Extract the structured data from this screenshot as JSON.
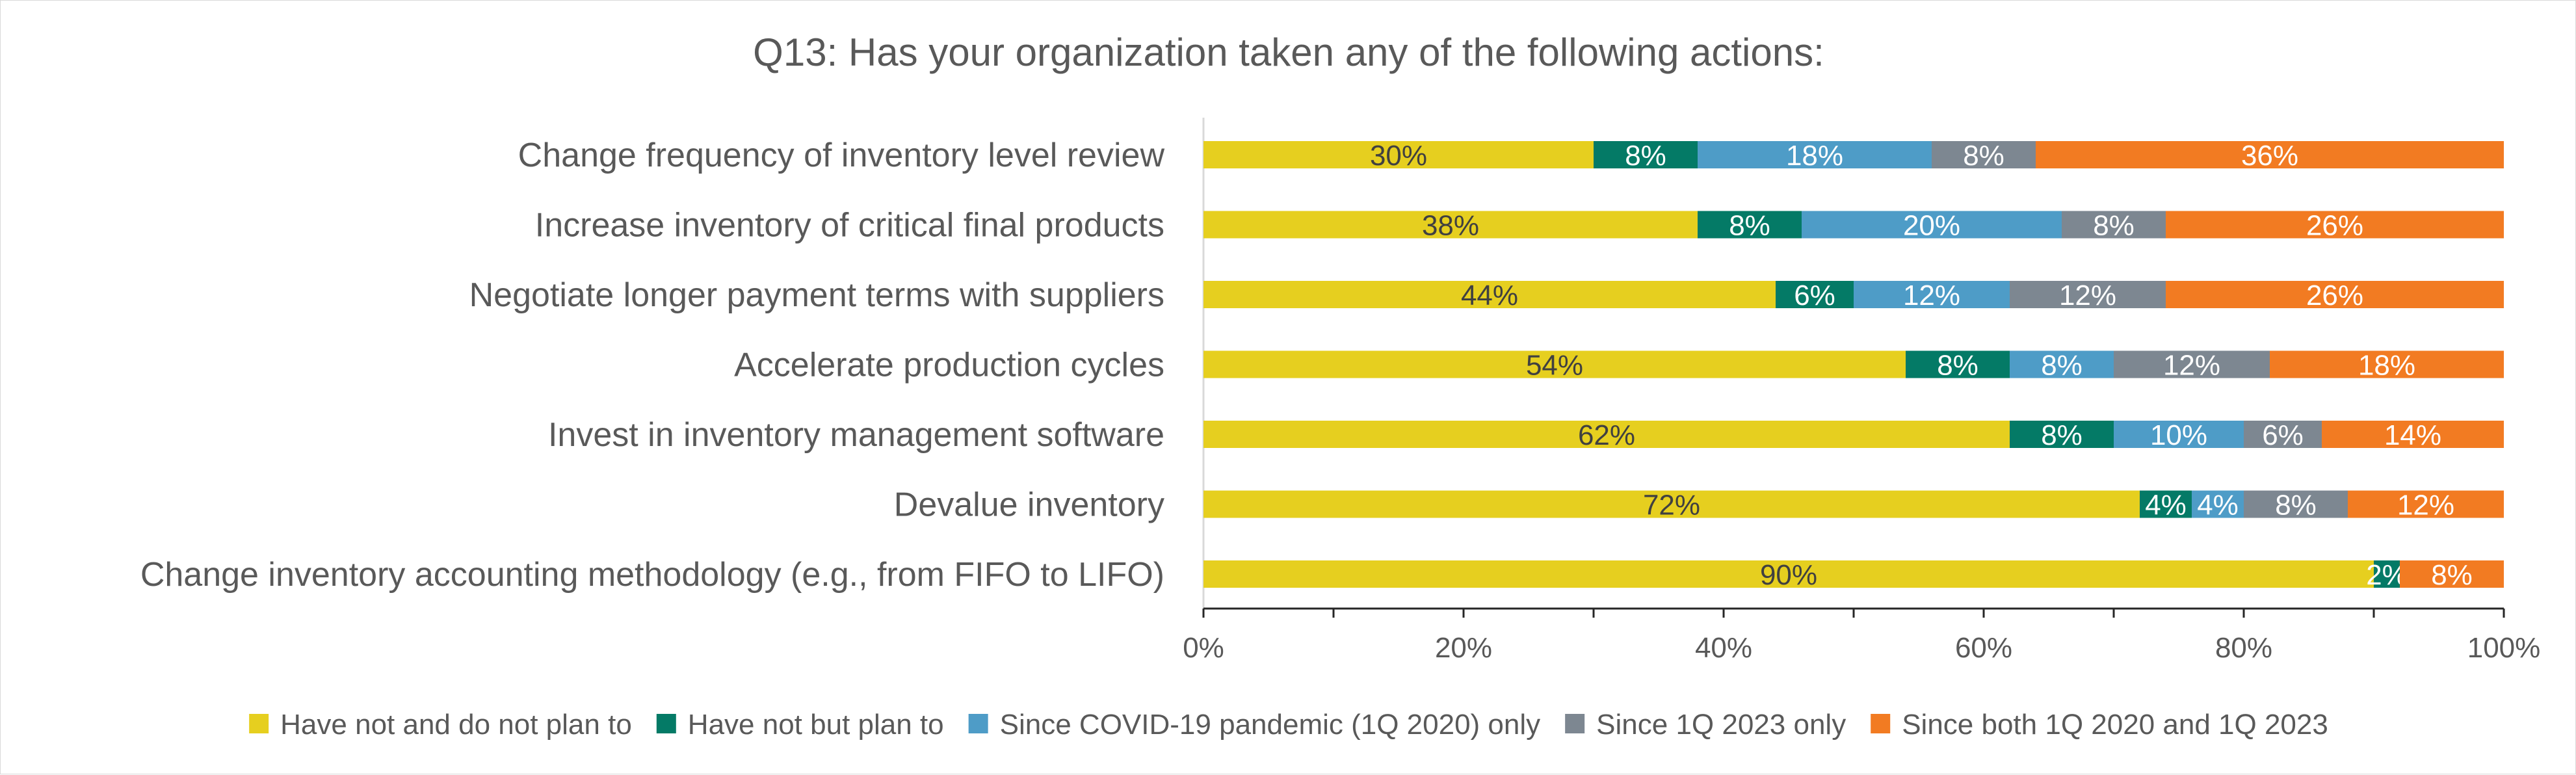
{
  "chart_data": {
    "type": "bar",
    "orientation": "horizontal",
    "stacked": true,
    "percent": true,
    "title": "Q13: Has your organization taken any of the following actions:",
    "categories": [
      "Change frequency of inventory level review",
      "Increase inventory of critical final products",
      "Negotiate longer payment terms with suppliers",
      "Accelerate production cycles",
      "Invest in inventory management software",
      "Devalue inventory",
      "Change inventory accounting methodology (e.g., from FIFO to LIFO)"
    ],
    "series": [
      {
        "name": "Have not and do not plan to",
        "color": "#E6CF1F",
        "label_color": "#404040",
        "values": [
          30,
          38,
          44,
          54,
          62,
          72,
          90
        ]
      },
      {
        "name": "Have not but plan to",
        "color": "#047A66",
        "label_color": "#FFFFFF",
        "values": [
          8,
          8,
          6,
          8,
          8,
          4,
          2
        ]
      },
      {
        "name": "Since COVID-19 pandemic (1Q 2020) only",
        "color": "#4E9CC7",
        "label_color": "#FFFFFF",
        "values": [
          18,
          20,
          12,
          8,
          10,
          4,
          0
        ]
      },
      {
        "name": "Since 1Q 2023 only",
        "color": "#7D8791",
        "label_color": "#FFFFFF",
        "values": [
          8,
          8,
          12,
          12,
          6,
          8,
          0
        ]
      },
      {
        "name": "Since both 1Q 2020 and 1Q 2023",
        "color": "#F27B22",
        "label_color": "#FFFFFF",
        "values": [
          36,
          26,
          26,
          18,
          14,
          12,
          8
        ]
      }
    ],
    "xlim": [
      0,
      100
    ],
    "xticks": [
      "0%",
      "20%",
      "40%",
      "60%",
      "80%",
      "100%"
    ],
    "grid": false,
    "legend_position": "bottom"
  }
}
